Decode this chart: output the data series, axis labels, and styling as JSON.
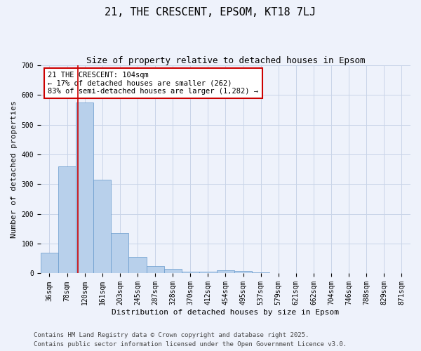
{
  "title": "21, THE CRESCENT, EPSOM, KT18 7LJ",
  "subtitle": "Size of property relative to detached houses in Epsom",
  "xlabel": "Distribution of detached houses by size in Epsom",
  "ylabel": "Number of detached properties",
  "bar_labels": [
    "36sqm",
    "78sqm",
    "120sqm",
    "161sqm",
    "203sqm",
    "245sqm",
    "287sqm",
    "328sqm",
    "370sqm",
    "412sqm",
    "454sqm",
    "495sqm",
    "537sqm",
    "579sqm",
    "621sqm",
    "662sqm",
    "704sqm",
    "746sqm",
    "788sqm",
    "829sqm",
    "871sqm"
  ],
  "bar_heights": [
    70,
    360,
    575,
    315,
    135,
    55,
    25,
    15,
    7,
    5,
    10,
    8,
    3,
    1,
    0,
    0,
    0,
    0,
    0,
    0,
    0
  ],
  "bar_color": "#b8d0eb",
  "bar_edge_color": "#6699cc",
  "background_color": "#eef2fb",
  "grid_color": "#c8d4e8",
  "red_line_x": 1.619,
  "annotation_title": "21 THE CRESCENT: 104sqm",
  "annotation_line1": "← 17% of detached houses are smaller (262)",
  "annotation_line2": "83% of semi-detached houses are larger (1,282) →",
  "annotation_box_facecolor": "#ffffff",
  "annotation_border_color": "#cc0000",
  "ylim": [
    0,
    700
  ],
  "yticks": [
    0,
    100,
    200,
    300,
    400,
    500,
    600,
    700
  ],
  "footnote1": "Contains HM Land Registry data © Crown copyright and database right 2025.",
  "footnote2": "Contains public sector information licensed under the Open Government Licence v3.0.",
  "title_fontsize": 11,
  "subtitle_fontsize": 9,
  "axis_label_fontsize": 8,
  "tick_fontsize": 7,
  "annotation_fontsize": 7.5,
  "footnote_fontsize": 6.5
}
